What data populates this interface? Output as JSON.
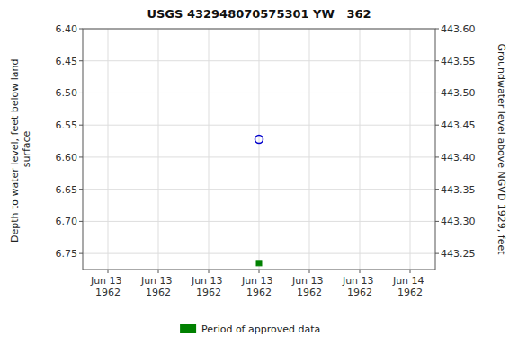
{
  "chart_data": {
    "type": "scatter",
    "title": "USGS 432948070575301 YW   362",
    "y_label": "Depth to water level, feet below land\nsurface",
    "y2_label": "Groundwater level above NGVD 1929, feet",
    "categories": [
      "Jun 13\n1962",
      "Jun 13\n1962",
      "Jun 13\n1962",
      "Jun 13\n1962",
      "Jun 13\n1962",
      "Jun 13\n1962",
      "Jun 14\n1962"
    ],
    "series": [
      {
        "color": "#0000cc",
        "marker": "circle",
        "values": [
          null,
          null,
          null,
          6.572,
          null,
          null,
          null
        ]
      },
      {
        "name": "Period of approved data",
        "color": "#008000",
        "marker": "square",
        "values": [
          null,
          null,
          null,
          6.765,
          null,
          null,
          null
        ]
      }
    ],
    "ylim": [
      6.775,
      6.4
    ],
    "yticks": [
      {
        "value": 6.4,
        "label": "6.40"
      },
      6.45,
      {
        "value": 6.5,
        "label": "6.50"
      },
      6.55,
      {
        "value": 6.6,
        "label": "6.60"
      },
      6.65,
      {
        "value": 6.7,
        "label": "6.70"
      },
      6.75
    ],
    "y2lim": [
      443.225,
      443.6
    ],
    "y2ticks": [
      {
        "value": 443.6,
        "label": "443.60"
      },
      443.55,
      {
        "value": 443.5,
        "label": "443.50"
      },
      443.45,
      {
        "value": 443.4,
        "label": "443.40"
      },
      443.35,
      {
        "value": 443.3,
        "label": "443.30"
      },
      443.25
    ],
    "grid": true,
    "legend": "bottom"
  }
}
